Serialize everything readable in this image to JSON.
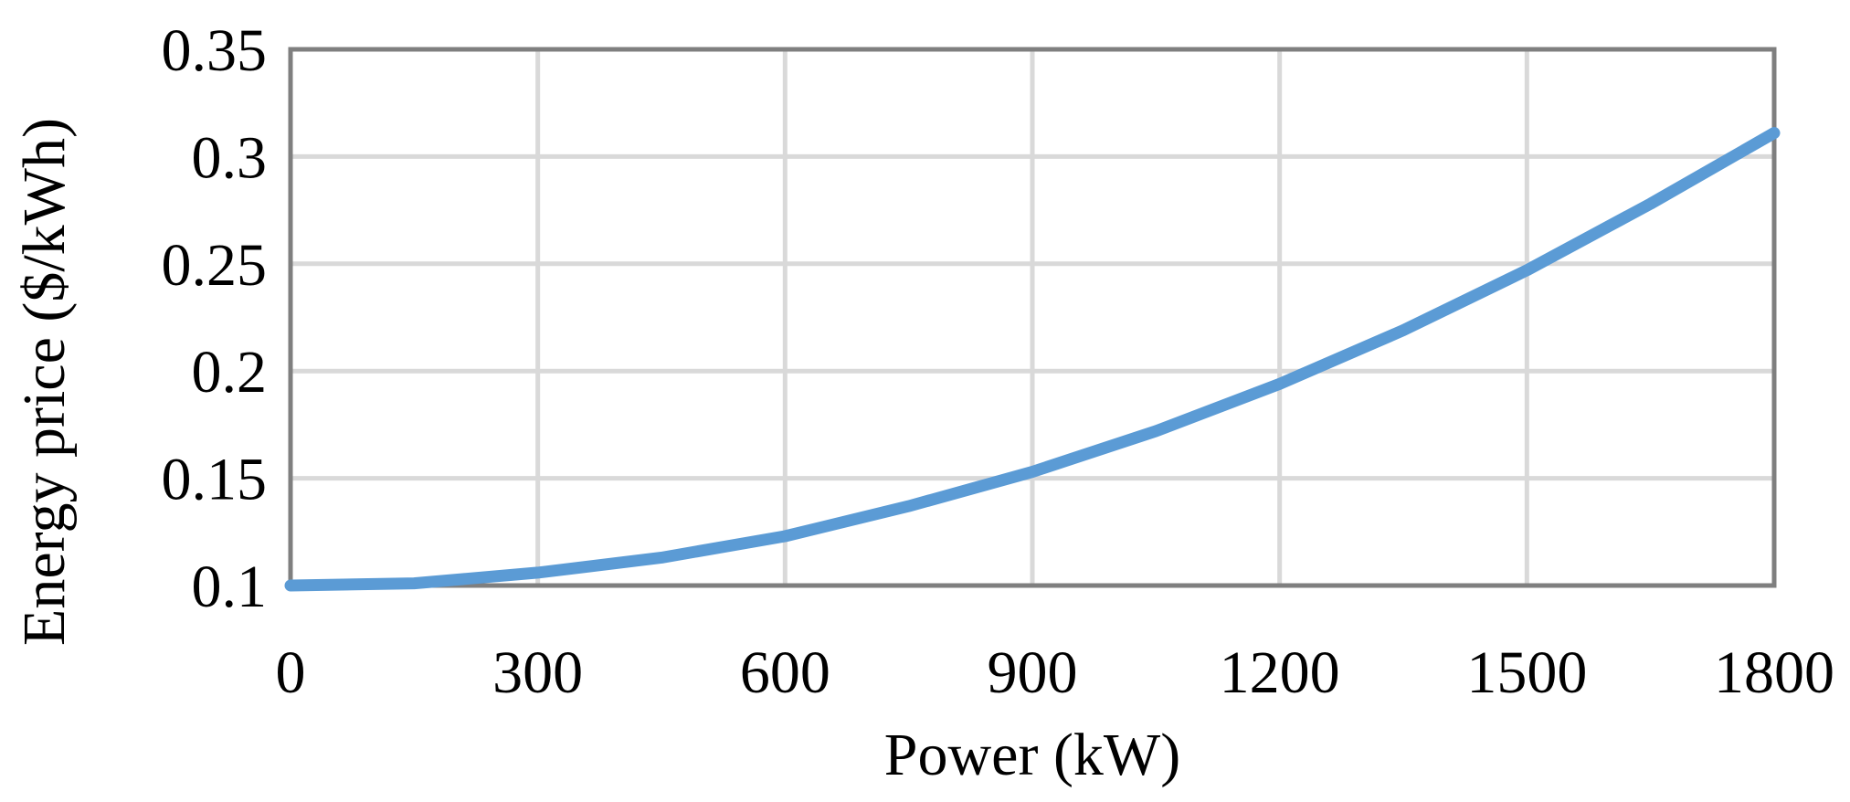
{
  "chart_data": {
    "type": "line",
    "title": "",
    "xlabel": "Power (kW)",
    "ylabel": "Energy price ($/kWh)",
    "xlim": [
      0,
      1800
    ],
    "ylim": [
      0.1,
      0.35
    ],
    "x_ticks": [
      "0",
      "300",
      "600",
      "900",
      "1200",
      "1500",
      "1800"
    ],
    "y_ticks": [
      "0.1",
      "0.15",
      "0.2",
      "0.25",
      "0.3",
      "0.35"
    ],
    "grid": true,
    "series": [
      {
        "color": "#5b9bd5",
        "x": [
          0,
          150,
          300,
          450,
          600,
          750,
          900,
          1050,
          1200,
          1350,
          1500,
          1650,
          1800
        ],
        "y": [
          0.1,
          0.101,
          0.106,
          0.113,
          0.123,
          0.137,
          0.153,
          0.172,
          0.194,
          0.219,
          0.247,
          0.278,
          0.311
        ]
      }
    ],
    "colors": {
      "grid": "#d9d9d9",
      "frame": "#7f7f7f",
      "line": "#5b9bd5"
    }
  }
}
